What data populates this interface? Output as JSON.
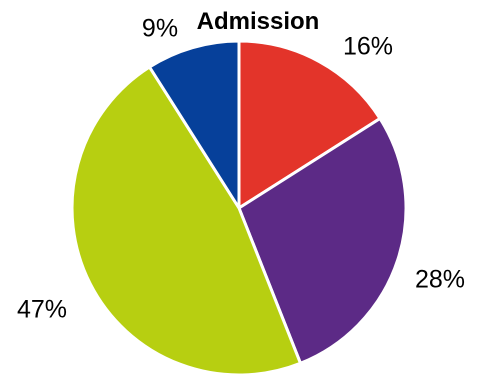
{
  "chart_data": {
    "type": "pie",
    "title": "Admission",
    "slices": [
      {
        "value": 16,
        "label": "16%",
        "color": "#e3342a"
      },
      {
        "value": 28,
        "label": "28%",
        "color": "#5c2a86"
      },
      {
        "value": 47,
        "label": "47%",
        "color": "#b7cf11"
      },
      {
        "value": 9,
        "label": "9%",
        "color": "#06409a"
      }
    ],
    "start_angle_deg": 0,
    "direction": "clockwise",
    "slice_border_color": "#ffffff"
  }
}
